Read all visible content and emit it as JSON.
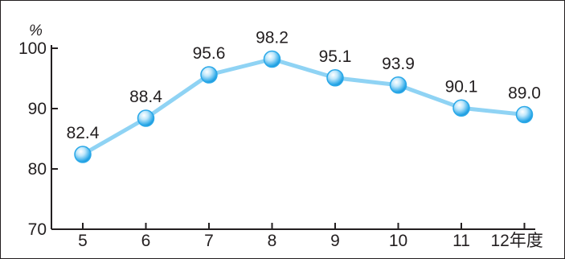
{
  "chart_data": {
    "type": "line",
    "title": "",
    "xlabel": "",
    "ylabel": "",
    "y_unit_label": "%",
    "x_unit_suffix": "年度",
    "categories": [
      "5",
      "6",
      "7",
      "8",
      "9",
      "10",
      "11",
      "12"
    ],
    "x_tick_labels": [
      "5",
      "6",
      "7",
      "8",
      "9",
      "10",
      "11",
      "12年度"
    ],
    "series": [
      {
        "values": [
          82.4,
          88.4,
          95.6,
          98.2,
          95.1,
          93.9,
          90.1,
          89.0
        ],
        "data_labels": [
          "82.4",
          "88.4",
          "95.6",
          "98.2",
          "95.1",
          "93.9",
          "90.1",
          "89.0"
        ],
        "line_color": "#8fd3f4",
        "marker_color": "#2aa8e8"
      }
    ],
    "ylim": [
      70,
      100
    ],
    "y_ticks": [
      70,
      80,
      90,
      100
    ],
    "y_tick_labels": [
      "70",
      "80",
      "90",
      "100"
    ],
    "grid": false,
    "legend": "none"
  }
}
